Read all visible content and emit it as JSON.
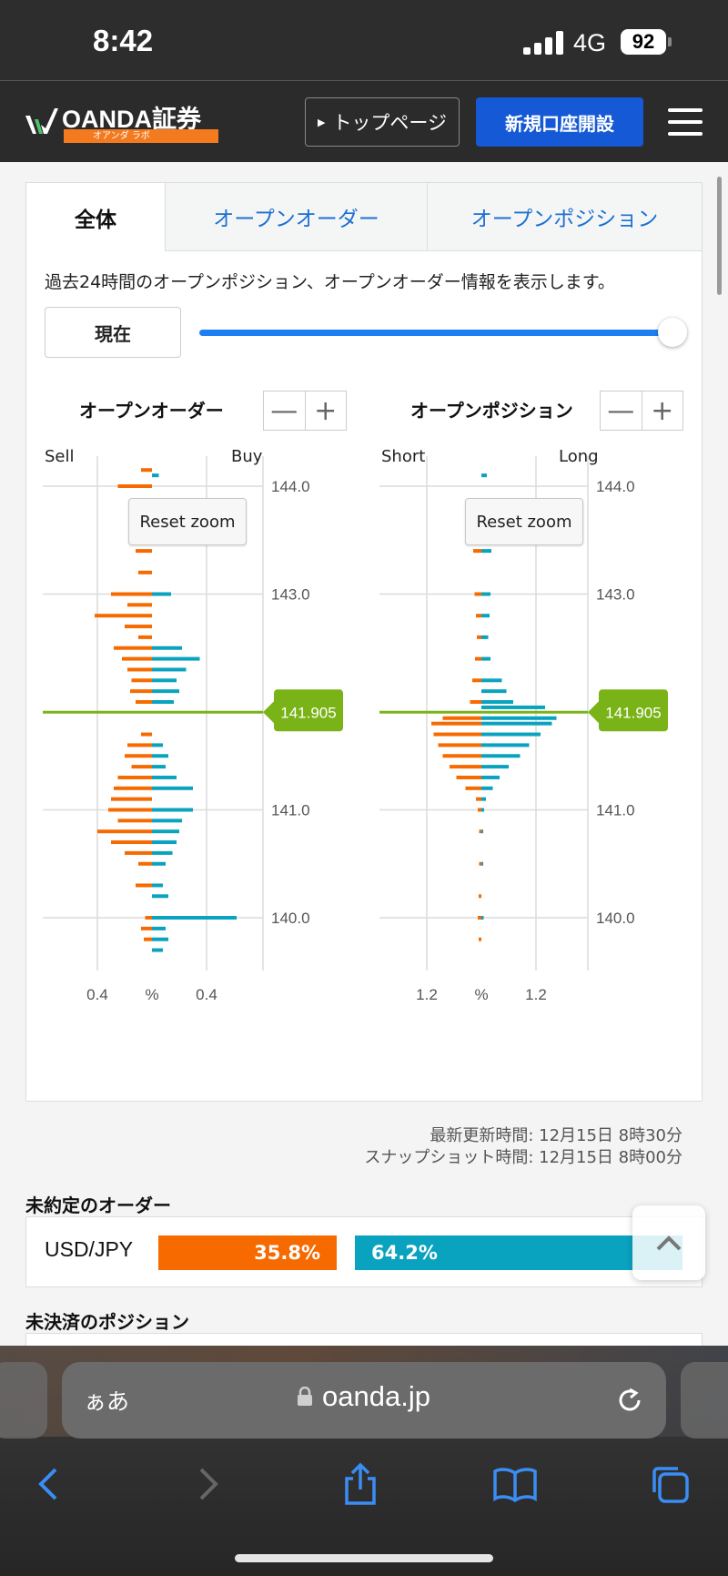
{
  "status_bar": {
    "time": "8:42",
    "network": "4G",
    "battery": "92"
  },
  "header": {
    "logo_text": "OANDA証券",
    "logo_sub": "オアンダ ラボ",
    "top_page_label": "トップページ",
    "open_account_label": "新規口座開設"
  },
  "tabs": [
    {
      "label": "全体",
      "active": true
    },
    {
      "label": "オープンオーダー",
      "active": false
    },
    {
      "label": "オープンポジション",
      "active": false
    }
  ],
  "description": "過去24時間のオープンポジション、オープンオーダー情報を表示します。",
  "now_button": "現在",
  "slider": {
    "value_fraction": 1.0
  },
  "orders_panel": {
    "title": "オープンオーダー",
    "left_label": "Sell",
    "right_label": "Buy",
    "reset_zoom": "Reset zoom",
    "x_ticks": [
      "0.4",
      "%",
      "0.4"
    ]
  },
  "positions_panel": {
    "title": "オープンポジション",
    "left_label": "Short",
    "right_label": "Long",
    "reset_zoom": "Reset zoom",
    "x_ticks": [
      "1.2",
      "%",
      "1.2"
    ]
  },
  "zoom_controls": {
    "minus": "—",
    "plus": "+"
  },
  "price_ticks": [
    "144.0",
    "143.0",
    "141.0",
    "140.0"
  ],
  "current_price": "141.905",
  "update_info": {
    "latest": "最新更新時間: 12月15日 8時30分",
    "snapshot": "スナップショット時間: 12月15日 8時00分"
  },
  "pending_orders": {
    "title": "未約定のオーダー",
    "pair": "USD/JPY",
    "sell_pct": "35.8%",
    "buy_pct": "64.2%"
  },
  "open_positions_title": "未決済のポジション",
  "browser": {
    "aa": "ぁあ",
    "url": "oanda.jp"
  },
  "colors": {
    "sell": "#f66a00",
    "buy": "#0aa3bf",
    "price_line": "#7ab317",
    "accent": "#1559d6"
  },
  "chart_data": [
    {
      "type": "bar",
      "orientation": "horizontal",
      "name": "オープンオーダー",
      "price_ticks": [
        144.0,
        143.0,
        141.0,
        140.0
      ],
      "current_price": 141.905,
      "x_ticks": [
        -0.4,
        0,
        0.4
      ],
      "series": [
        {
          "name": "Sell",
          "side": "left",
          "points": [
            [
              144.3,
              0.03
            ],
            [
              144.15,
              0.08
            ],
            [
              144.0,
              0.25
            ],
            [
              143.8,
              0.1
            ],
            [
              143.6,
              0.14
            ],
            [
              143.4,
              0.12
            ],
            [
              143.2,
              0.1
            ],
            [
              143.0,
              0.3
            ],
            [
              142.9,
              0.18
            ],
            [
              142.8,
              0.42
            ],
            [
              142.7,
              0.2
            ],
            [
              142.6,
              0.1
            ],
            [
              142.5,
              0.28
            ],
            [
              142.4,
              0.22
            ],
            [
              142.3,
              0.18
            ],
            [
              142.2,
              0.15
            ],
            [
              142.1,
              0.16
            ],
            [
              142.0,
              0.12
            ]
          ]
        },
        {
          "name": "Buy",
          "side": "right",
          "points": [
            [
              141.6,
              0.08
            ],
            [
              141.5,
              0.12
            ],
            [
              141.4,
              0.1
            ],
            [
              141.3,
              0.18
            ],
            [
              141.2,
              0.3
            ],
            [
              141.0,
              0.3
            ],
            [
              140.9,
              0.22
            ],
            [
              140.8,
              0.2
            ],
            [
              140.7,
              0.18
            ],
            [
              140.6,
              0.15
            ],
            [
              140.5,
              0.1
            ],
            [
              140.3,
              0.08
            ],
            [
              140.2,
              0.12
            ],
            [
              140.0,
              0.62
            ],
            [
              139.9,
              0.1
            ],
            [
              139.8,
              0.12
            ],
            [
              139.7,
              0.08
            ]
          ]
        },
        {
          "name": "Buy",
          "side": "right",
          "points": [
            [
              144.1,
              0.05
            ],
            [
              143.5,
              0.08
            ],
            [
              143.0,
              0.14
            ],
            [
              142.5,
              0.22
            ],
            [
              142.4,
              0.35
            ],
            [
              142.3,
              0.25
            ],
            [
              142.2,
              0.18
            ],
            [
              142.1,
              0.2
            ],
            [
              142.0,
              0.16
            ]
          ]
        },
        {
          "name": "Sell",
          "side": "left",
          "points": [
            [
              141.7,
              0.08
            ],
            [
              141.6,
              0.18
            ],
            [
              141.5,
              0.2
            ],
            [
              141.4,
              0.15
            ],
            [
              141.3,
              0.25
            ],
            [
              141.2,
              0.28
            ],
            [
              141.1,
              0.3
            ],
            [
              141.0,
              0.32
            ],
            [
              140.9,
              0.25
            ],
            [
              140.8,
              0.4
            ],
            [
              140.7,
              0.3
            ],
            [
              140.6,
              0.2
            ],
            [
              140.5,
              0.1
            ],
            [
              140.3,
              0.12
            ],
            [
              140.0,
              0.05
            ],
            [
              139.9,
              0.08
            ],
            [
              139.8,
              0.06
            ]
          ]
        }
      ]
    },
    {
      "type": "bar",
      "orientation": "horizontal",
      "name": "オープンポジション",
      "price_ticks": [
        144.0,
        143.0,
        141.0,
        140.0
      ],
      "current_price": 141.905,
      "x_ticks": [
        -1.2,
        0,
        1.2
      ],
      "series": [
        {
          "name": "Short",
          "side": "left",
          "points": [
            [
              144.3,
              0.25
            ],
            [
              143.8,
              0.1
            ],
            [
              143.4,
              0.18
            ],
            [
              143.0,
              0.15
            ],
            [
              142.8,
              0.12
            ],
            [
              142.6,
              0.1
            ],
            [
              142.4,
              0.14
            ],
            [
              142.2,
              0.2
            ],
            [
              142.0,
              0.25
            ],
            [
              141.85,
              0.85
            ],
            [
              141.8,
              1.1
            ],
            [
              141.7,
              1.05
            ],
            [
              141.6,
              0.95
            ],
            [
              141.5,
              0.85
            ],
            [
              141.4,
              0.7
            ],
            [
              141.3,
              0.55
            ],
            [
              141.2,
              0.35
            ],
            [
              141.1,
              0.12
            ],
            [
              141.0,
              0.08
            ],
            [
              140.8,
              0.05
            ],
            [
              140.5,
              0.05
            ],
            [
              140.2,
              0.06
            ],
            [
              140.0,
              0.08
            ],
            [
              139.8,
              0.06
            ]
          ]
        },
        {
          "name": "Long",
          "side": "right",
          "points": [
            [
              144.1,
              0.12
            ],
            [
              143.8,
              0.1
            ],
            [
              143.4,
              0.22
            ],
            [
              143.0,
              0.2
            ],
            [
              142.8,
              0.18
            ],
            [
              142.6,
              0.15
            ],
            [
              142.4,
              0.2
            ],
            [
              142.2,
              0.45
            ],
            [
              142.1,
              0.55
            ],
            [
              142.0,
              0.7
            ],
            [
              141.95,
              1.4
            ],
            [
              141.85,
              1.65
            ],
            [
              141.8,
              1.55
            ],
            [
              141.7,
              1.3
            ],
            [
              141.6,
              1.05
            ],
            [
              141.5,
              0.85
            ],
            [
              141.4,
              0.6
            ],
            [
              141.3,
              0.4
            ],
            [
              141.2,
              0.25
            ],
            [
              141.1,
              0.1
            ],
            [
              141.0,
              0.06
            ],
            [
              140.8,
              0.04
            ],
            [
              140.5,
              0.04
            ],
            [
              140.0,
              0.05
            ]
          ]
        }
      ]
    }
  ]
}
